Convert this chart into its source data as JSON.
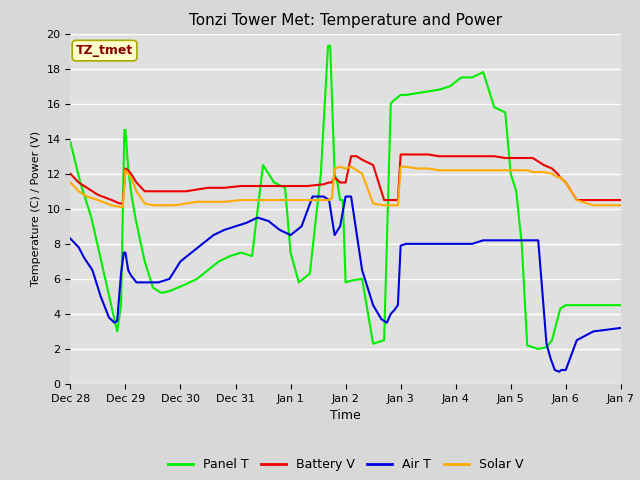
{
  "title": "Tonzi Tower Met: Temperature and Power",
  "xlabel": "Time",
  "ylabel": "Temperature (C) / Power (V)",
  "ylim": [
    0,
    20
  ],
  "fig_bg_color": "#d8d8d8",
  "plot_bg_color": "#e0e0e0",
  "annotation_text": "TZ_tmet",
  "annotation_bg": "#ffffcc",
  "annotation_border": "#aaaa00",
  "annotation_color": "#880000",
  "series": {
    "panel_t": {
      "color": "#00ee00",
      "label": "Panel T",
      "x": [
        0.0,
        0.18,
        0.38,
        0.85,
        0.92,
        0.98,
        1.0,
        1.05,
        1.1,
        1.18,
        1.28,
        1.35,
        1.5,
        1.65,
        1.8,
        1.95,
        2.1,
        2.3,
        2.5,
        2.7,
        2.9,
        3.1,
        3.3,
        3.5,
        3.7,
        3.9,
        4.0,
        4.15,
        4.35,
        4.55,
        4.68,
        4.72,
        4.8,
        4.85,
        4.9,
        4.95,
        5.0,
        5.1,
        5.3,
        5.5,
        5.7,
        5.82,
        5.88,
        5.92,
        6.0,
        6.1,
        6.3,
        6.5,
        6.7,
        6.9,
        7.1,
        7.3,
        7.5,
        7.7,
        7.9,
        8.0,
        8.1,
        8.2,
        8.3,
        8.5,
        8.65,
        8.75,
        8.9,
        9.0,
        9.2,
        9.4,
        9.6,
        9.8,
        10.0
      ],
      "y": [
        13.8,
        11.5,
        9.5,
        3.0,
        4.5,
        14.5,
        14.5,
        12.3,
        11.0,
        9.5,
        8.0,
        7.0,
        5.5,
        5.2,
        5.3,
        5.5,
        5.7,
        6.0,
        6.5,
        7.0,
        7.3,
        7.5,
        7.3,
        12.5,
        11.5,
        11.2,
        7.5,
        5.8,
        6.3,
        12.0,
        19.3,
        19.3,
        12.0,
        11.5,
        10.5,
        10.5,
        5.8,
        5.9,
        6.0,
        2.3,
        2.5,
        16.0,
        16.2,
        16.3,
        16.5,
        16.5,
        16.6,
        16.7,
        16.8,
        17.0,
        17.5,
        17.5,
        17.8,
        15.8,
        15.5,
        12.0,
        11.0,
        8.0,
        2.2,
        2.0,
        2.1,
        2.5,
        4.3,
        4.5,
        4.5,
        4.5,
        4.5,
        4.5,
        4.5
      ]
    },
    "battery_v": {
      "color": "#ee0000",
      "label": "Battery V",
      "x": [
        0.0,
        0.15,
        0.3,
        0.5,
        0.75,
        0.9,
        0.95,
        1.0,
        1.05,
        1.1,
        1.2,
        1.35,
        1.5,
        1.7,
        1.9,
        2.1,
        2.3,
        2.5,
        2.8,
        3.1,
        3.4,
        3.7,
        3.9,
        4.1,
        4.3,
        4.6,
        4.7,
        4.75,
        4.8,
        4.9,
        5.0,
        5.1,
        5.2,
        5.3,
        5.5,
        5.7,
        5.85,
        5.9,
        5.95,
        6.0,
        6.1,
        6.3,
        6.5,
        6.7,
        6.9,
        7.1,
        7.3,
        7.5,
        7.7,
        7.9,
        8.0,
        8.1,
        8.2,
        8.3,
        8.4,
        8.6,
        8.75,
        8.85,
        8.9,
        9.0,
        9.2,
        9.5,
        10.0
      ],
      "y": [
        12.0,
        11.5,
        11.2,
        10.8,
        10.5,
        10.3,
        10.3,
        12.3,
        12.2,
        12.0,
        11.5,
        11.0,
        11.0,
        11.0,
        11.0,
        11.0,
        11.1,
        11.2,
        11.2,
        11.3,
        11.3,
        11.3,
        11.3,
        11.3,
        11.3,
        11.4,
        11.5,
        11.5,
        11.8,
        11.5,
        11.5,
        13.0,
        13.0,
        12.8,
        12.5,
        10.5,
        10.5,
        10.5,
        10.5,
        13.1,
        13.1,
        13.1,
        13.1,
        13.0,
        13.0,
        13.0,
        13.0,
        13.0,
        13.0,
        12.9,
        12.9,
        12.9,
        12.9,
        12.9,
        12.9,
        12.5,
        12.3,
        12.0,
        11.8,
        11.5,
        10.5,
        10.5,
        10.5
      ]
    },
    "air_t": {
      "color": "#0000dd",
      "label": "Air T",
      "x": [
        0.0,
        0.15,
        0.25,
        0.4,
        0.55,
        0.7,
        0.8,
        0.85,
        0.92,
        0.97,
        1.0,
        1.05,
        1.1,
        1.2,
        1.4,
        1.6,
        1.8,
        2.0,
        2.2,
        2.4,
        2.6,
        2.8,
        3.0,
        3.2,
        3.4,
        3.6,
        3.8,
        4.0,
        4.2,
        4.4,
        4.6,
        4.7,
        4.75,
        4.8,
        4.9,
        5.0,
        5.1,
        5.3,
        5.5,
        5.65,
        5.75,
        5.82,
        5.88,
        5.95,
        6.0,
        6.1,
        6.3,
        6.5,
        6.7,
        6.9,
        7.1,
        7.3,
        7.5,
        7.7,
        7.9,
        8.0,
        8.1,
        8.2,
        8.3,
        8.5,
        8.65,
        8.72,
        8.8,
        8.88,
        8.92,
        9.0,
        9.2,
        9.5,
        10.0
      ],
      "y": [
        8.3,
        7.8,
        7.2,
        6.5,
        5.0,
        3.8,
        3.5,
        3.6,
        6.3,
        7.5,
        7.5,
        6.5,
        6.2,
        5.8,
        5.8,
        5.8,
        6.0,
        7.0,
        7.5,
        8.0,
        8.5,
        8.8,
        9.0,
        9.2,
        9.5,
        9.3,
        8.8,
        8.5,
        9.0,
        10.7,
        10.7,
        10.5,
        9.5,
        8.5,
        9.0,
        10.7,
        10.7,
        6.5,
        4.5,
        3.7,
        3.5,
        4.0,
        4.2,
        4.5,
        7.9,
        8.0,
        8.0,
        8.0,
        8.0,
        8.0,
        8.0,
        8.0,
        8.2,
        8.2,
        8.2,
        8.2,
        8.2,
        8.2,
        8.2,
        8.2,
        2.3,
        1.5,
        0.8,
        0.7,
        0.8,
        0.8,
        2.5,
        3.0,
        3.2
      ]
    },
    "solar_v": {
      "color": "#ffaa00",
      "label": "Solar V",
      "x": [
        0.0,
        0.15,
        0.3,
        0.5,
        0.75,
        0.9,
        0.95,
        1.0,
        1.05,
        1.1,
        1.2,
        1.35,
        1.5,
        1.7,
        1.9,
        2.1,
        2.3,
        2.5,
        2.8,
        3.1,
        3.4,
        3.7,
        3.9,
        4.1,
        4.3,
        4.5,
        4.7,
        4.75,
        4.8,
        4.9,
        5.0,
        5.1,
        5.2,
        5.3,
        5.5,
        5.7,
        5.85,
        5.9,
        5.95,
        6.0,
        6.1,
        6.3,
        6.5,
        6.7,
        6.9,
        7.1,
        7.3,
        7.5,
        7.7,
        7.9,
        8.0,
        8.1,
        8.2,
        8.3,
        8.4,
        8.6,
        8.75,
        8.85,
        8.9,
        9.0,
        9.2,
        9.5,
        10.0
      ],
      "y": [
        11.5,
        11.0,
        10.7,
        10.5,
        10.2,
        10.1,
        10.1,
        12.2,
        12.0,
        11.8,
        11.0,
        10.3,
        10.2,
        10.2,
        10.2,
        10.3,
        10.4,
        10.4,
        10.4,
        10.5,
        10.5,
        10.5,
        10.5,
        10.5,
        10.5,
        10.5,
        10.5,
        10.6,
        12.3,
        12.4,
        12.3,
        12.4,
        12.2,
        12.0,
        10.3,
        10.2,
        10.2,
        10.2,
        10.2,
        12.4,
        12.4,
        12.3,
        12.3,
        12.2,
        12.2,
        12.2,
        12.2,
        12.2,
        12.2,
        12.2,
        12.2,
        12.2,
        12.2,
        12.2,
        12.1,
        12.1,
        12.0,
        11.8,
        11.8,
        11.5,
        10.5,
        10.2,
        10.2
      ]
    }
  }
}
